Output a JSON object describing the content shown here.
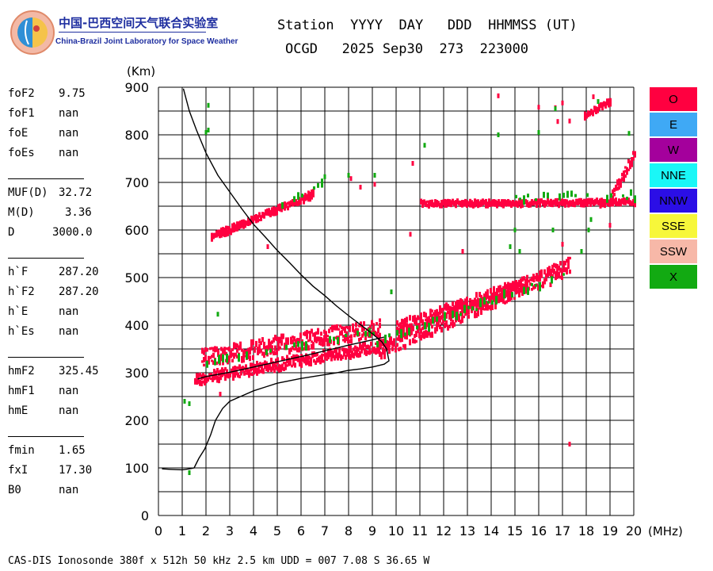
{
  "logo": {
    "name_cn": "中国-巴西空间天气联合实验室",
    "name_en": "China-Brazil Joint Laboratory for Space Weather"
  },
  "header": {
    "line1": "Station  YYYY  DAY   DDD  HHMMSS (UT)",
    "line2": "OCGD   2025 Sep30  273  223000"
  },
  "params": [
    {
      "label": "foF2",
      "value": "9.75"
    },
    {
      "label": "foF1",
      "value": "nan"
    },
    {
      "label": "foE",
      "value": "nan"
    },
    {
      "label": "foEs",
      "value": "nan"
    },
    {
      "label": "MUF(D)",
      "value": "32.72"
    },
    {
      "label": "M(D)",
      "value": "3.36"
    },
    {
      "label": "D",
      "value": "3000.0"
    },
    {
      "label": "h`F",
      "value": "287.20"
    },
    {
      "label": "h`F2",
      "value": "287.20"
    },
    {
      "label": "h`E",
      "value": "nan"
    },
    {
      "label": "h`Es",
      "value": "nan"
    },
    {
      "label": "hmF2",
      "value": "325.45"
    },
    {
      "label": "hmF1",
      "value": "nan"
    },
    {
      "label": "hmE",
      "value": "nan"
    },
    {
      "label": "fmin",
      "value": "1.65"
    },
    {
      "label": "fxI",
      "value": "17.30"
    },
    {
      "label": "B0",
      "value": "nan"
    }
  ],
  "legend": [
    {
      "label": "O",
      "color": "#ff0040"
    },
    {
      "label": "E",
      "color": "#3fa9f5"
    },
    {
      "label": "W",
      "color": "#a4009c"
    },
    {
      "label": "NNE",
      "color": "#1af7f7"
    },
    {
      "label": "NNW",
      "color": "#2b0ee6"
    },
    {
      "label": "SSE",
      "color": "#f7f73a"
    },
    {
      "label": "SSW",
      "color": "#f7b8a8"
    },
    {
      "label": "X",
      "color": "#12aa12"
    }
  ],
  "footer": "CAS-DIS Ionosonde 380f x 512h 50 kHz 2.5 km UDD = 007 7.08 S 36.65 W",
  "chart_data": {
    "type": "scatter",
    "xlabel": "(MHz)",
    "ylabel": "(Km)",
    "xlim": [
      0,
      20
    ],
    "ylim": [
      0,
      900
    ],
    "x_ticks": [
      0,
      1,
      2,
      3,
      4,
      5,
      6,
      7,
      8,
      9,
      10,
      11,
      12,
      13,
      14,
      15,
      16,
      17,
      18,
      19,
      20
    ],
    "y_ticks": [
      0,
      100,
      200,
      300,
      400,
      500,
      600,
      700,
      800,
      900
    ],
    "grid": true,
    "series": [
      {
        "name": "O",
        "color": "#ff0040",
        "trace_bands": [
          {
            "x_start": 1.5,
            "x_end": 9.7,
            "y_start": 285,
            "y_end": 360,
            "thickness": 14
          },
          {
            "x_start": 1.8,
            "x_end": 9.3,
            "y_start": 330,
            "y_end": 395,
            "thickness": 22
          },
          {
            "x_start": 9.2,
            "x_end": 17.3,
            "y_start": 345,
            "y_end": 525,
            "thickness": 20
          },
          {
            "x_start": 10.0,
            "x_end": 15.5,
            "y_start": 395,
            "y_end": 490,
            "thickness": 14
          },
          {
            "x_start": 2.2,
            "x_end": 6.5,
            "y_start": 585,
            "y_end": 675,
            "thickness": 8
          },
          {
            "x_start": 11.0,
            "x_end": 20.0,
            "y_start": 655,
            "y_end": 658,
            "thickness": 6
          },
          {
            "x_start": 19.0,
            "x_end": 20.0,
            "y_start": 665,
            "y_end": 760,
            "thickness": 12
          },
          {
            "x_start": 17.9,
            "x_end": 19.0,
            "y_start": 840,
            "y_end": 870,
            "thickness": 6
          }
        ],
        "points": [
          [
            14.3,
            882
          ],
          [
            16.0,
            858
          ],
          [
            16.7,
            857
          ],
          [
            16.8,
            828
          ],
          [
            17.3,
            829
          ],
          [
            17.0,
            867
          ],
          [
            18.3,
            880
          ],
          [
            9.1,
            696
          ],
          [
            8.5,
            690
          ],
          [
            8.1,
            708
          ],
          [
            10.7,
            740
          ],
          [
            10.6,
            591
          ],
          [
            17.3,
            150
          ],
          [
            19.0,
            610
          ],
          [
            4.6,
            565
          ],
          [
            18.6,
            650
          ],
          [
            12.8,
            555
          ],
          [
            15.8,
            495
          ],
          [
            16.5,
            485
          ],
          [
            17.0,
            570
          ],
          [
            2.6,
            255
          ]
        ]
      },
      {
        "name": "X",
        "color": "#12aa12",
        "trace_bands": [
          {
            "x_start": 2.0,
            "x_end": 9.0,
            "y_start": 320,
            "y_end": 385,
            "thickness": 6
          },
          {
            "x_start": 9.0,
            "x_end": 17.0,
            "y_start": 360,
            "y_end": 505,
            "thickness": 8
          },
          {
            "x_start": 15.0,
            "x_end": 20.0,
            "y_start": 668,
            "y_end": 672,
            "thickness": 10
          },
          {
            "x_start": 5.0,
            "x_end": 7.0,
            "y_start": 650,
            "y_end": 700,
            "thickness": 5
          }
        ],
        "points": [
          [
            1.3,
            235
          ],
          [
            1.3,
            90
          ],
          [
            1.1,
            240
          ],
          [
            2.1,
            862
          ],
          [
            2.1,
            810
          ],
          [
            2.0,
            805
          ],
          [
            7.0,
            712
          ],
          [
            8.0,
            715
          ],
          [
            9.1,
            715
          ],
          [
            11.2,
            778
          ],
          [
            14.3,
            800
          ],
          [
            16.7,
            855
          ],
          [
            18.5,
            870
          ],
          [
            18.2,
            622
          ],
          [
            18.1,
            600
          ],
          [
            15.0,
            600
          ],
          [
            15.2,
            555
          ],
          [
            16.6,
            600
          ],
          [
            17.8,
            555
          ],
          [
            19.8,
            803
          ],
          [
            16.0,
            805
          ],
          [
            9.8,
            470
          ],
          [
            2.5,
            423
          ],
          [
            14.8,
            565
          ]
        ]
      }
    ],
    "lines": [
      {
        "name": "profile",
        "points": [
          [
            1.05,
            897
          ],
          [
            1.3,
            850
          ],
          [
            1.6,
            810
          ],
          [
            2.0,
            762
          ],
          [
            2.5,
            715
          ],
          [
            3.0,
            680
          ],
          [
            3.5,
            645
          ],
          [
            4.0,
            612
          ],
          [
            4.5,
            585
          ],
          [
            5.0,
            557
          ],
          [
            5.5,
            532
          ],
          [
            6.0,
            506
          ],
          [
            6.5,
            482
          ],
          [
            7.0,
            462
          ],
          [
            7.5,
            440
          ],
          [
            8.0,
            420
          ],
          [
            8.5,
            401
          ],
          [
            9.0,
            382
          ],
          [
            9.4,
            365
          ],
          [
            9.6,
            350
          ],
          [
            9.7,
            325
          ],
          [
            9.5,
            318
          ],
          [
            9.0,
            312
          ],
          [
            8.5,
            308
          ],
          [
            8.0,
            305
          ],
          [
            7.5,
            300
          ],
          [
            7.0,
            296
          ],
          [
            6.5,
            292
          ],
          [
            6.0,
            288
          ],
          [
            5.5,
            283
          ],
          [
            5.0,
            278
          ],
          [
            4.5,
            270
          ],
          [
            4.0,
            262
          ],
          [
            3.5,
            251
          ],
          [
            3.0,
            240
          ],
          [
            2.7,
            225
          ],
          [
            2.4,
            200
          ],
          [
            2.2,
            170
          ],
          [
            1.95,
            140
          ],
          [
            1.7,
            120
          ],
          [
            1.6,
            110
          ],
          [
            1.5,
            100
          ],
          [
            1.3,
            98
          ],
          [
            1.0,
            96
          ],
          [
            0.5,
            97
          ],
          [
            0.15,
            98
          ]
        ]
      },
      {
        "name": "virtual-height-trace",
        "points": [
          [
            1.65,
            287
          ],
          [
            2.0,
            292
          ],
          [
            3.0,
            301
          ],
          [
            4.0,
            312
          ],
          [
            5.0,
            323
          ],
          [
            6.0,
            334
          ],
          [
            7.0,
            346
          ],
          [
            8.0,
            358
          ],
          [
            9.0,
            369
          ],
          [
            9.5,
            375
          ]
        ]
      }
    ]
  }
}
